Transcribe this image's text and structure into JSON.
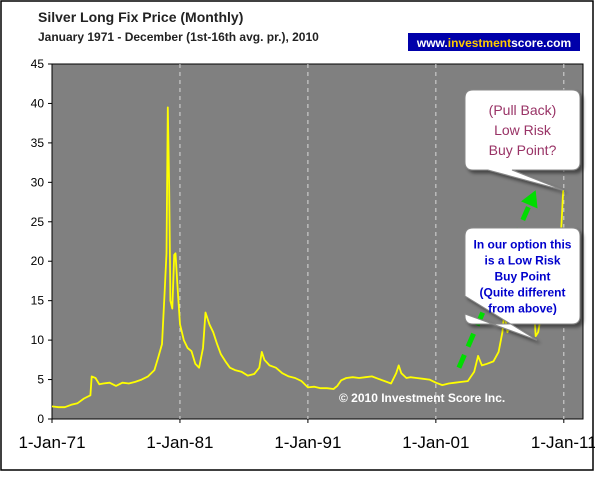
{
  "chart_data": {
    "type": "line",
    "title": "Silver Long Fix Price (Monthly)",
    "subtitle": "January 1971 - December (1st-16th avg. pr.), 2010",
    "website_prefix": "www.",
    "website_brand": "investment",
    "website_suffix": "score.com",
    "copyright": "© 2010 Investment Score Inc.",
    "ylim": [
      0,
      45
    ],
    "yticks": [
      "0",
      "5",
      "10",
      "15",
      "20",
      "25",
      "30",
      "35",
      "40",
      "45"
    ],
    "xticks": [
      {
        "label": "1-Jan-71",
        "year": 1971
      },
      {
        "label": "1-Jan-81",
        "year": 1981
      },
      {
        "label": "1-Jan-91",
        "year": 1991
      },
      {
        "label": "1-Jan-01",
        "year": 2001
      },
      {
        "label": "1-Jan-11",
        "year": 2011
      }
    ],
    "xlim": [
      1971,
      2012.5
    ],
    "grid": "vertical dashed at x ticks",
    "series": [
      {
        "color": "#ffff00",
        "points": [
          [
            1971.0,
            1.6
          ],
          [
            1971.5,
            1.5
          ],
          [
            1972.0,
            1.5
          ],
          [
            1972.5,
            1.8
          ],
          [
            1973.0,
            2.0
          ],
          [
            1973.5,
            2.6
          ],
          [
            1974.0,
            3.0
          ],
          [
            1974.1,
            5.4
          ],
          [
            1974.4,
            5.2
          ],
          [
            1974.7,
            4.4
          ],
          [
            1975.0,
            4.5
          ],
          [
            1975.5,
            4.6
          ],
          [
            1976.0,
            4.2
          ],
          [
            1976.5,
            4.6
          ],
          [
            1977.0,
            4.5
          ],
          [
            1977.5,
            4.7
          ],
          [
            1978.0,
            5.0
          ],
          [
            1978.5,
            5.4
          ],
          [
            1979.0,
            6.2
          ],
          [
            1979.3,
            7.8
          ],
          [
            1979.6,
            9.5
          ],
          [
            1979.8,
            16.0
          ],
          [
            1979.95,
            21.0
          ],
          [
            1980.05,
            39.5
          ],
          [
            1980.15,
            30.0
          ],
          [
            1980.25,
            15.0
          ],
          [
            1980.4,
            14.0
          ],
          [
            1980.55,
            20.8
          ],
          [
            1980.65,
            21.0
          ],
          [
            1980.8,
            17.0
          ],
          [
            1981.0,
            12.0
          ],
          [
            1981.3,
            10.0
          ],
          [
            1981.6,
            9.0
          ],
          [
            1981.9,
            8.6
          ],
          [
            1982.2,
            7.0
          ],
          [
            1982.5,
            6.5
          ],
          [
            1982.8,
            9.0
          ],
          [
            1983.0,
            13.5
          ],
          [
            1983.3,
            12.0
          ],
          [
            1983.6,
            11.0
          ],
          [
            1983.9,
            9.5
          ],
          [
            1984.2,
            8.2
          ],
          [
            1984.6,
            7.2
          ],
          [
            1984.9,
            6.5
          ],
          [
            1985.3,
            6.2
          ],
          [
            1985.8,
            6.0
          ],
          [
            1986.3,
            5.5
          ],
          [
            1986.8,
            5.7
          ],
          [
            1987.2,
            6.5
          ],
          [
            1987.4,
            8.5
          ],
          [
            1987.6,
            7.5
          ],
          [
            1988.0,
            6.8
          ],
          [
            1988.5,
            6.5
          ],
          [
            1989.0,
            5.8
          ],
          [
            1989.5,
            5.4
          ],
          [
            1990.0,
            5.2
          ],
          [
            1990.5,
            4.8
          ],
          [
            1991.0,
            4.0
          ],
          [
            1991.5,
            4.1
          ],
          [
            1992.0,
            3.9
          ],
          [
            1992.5,
            3.9
          ],
          [
            1993.0,
            3.8
          ],
          [
            1993.3,
            4.2
          ],
          [
            1993.6,
            4.9
          ],
          [
            1994.0,
            5.2
          ],
          [
            1994.5,
            5.3
          ],
          [
            1995.0,
            5.2
          ],
          [
            1995.5,
            5.3
          ],
          [
            1996.0,
            5.4
          ],
          [
            1996.5,
            5.1
          ],
          [
            1997.0,
            4.8
          ],
          [
            1997.5,
            4.5
          ],
          [
            1997.9,
            5.8
          ],
          [
            1998.1,
            6.8
          ],
          [
            1998.3,
            5.8
          ],
          [
            1998.7,
            5.2
          ],
          [
            1999.0,
            5.3
          ],
          [
            1999.5,
            5.2
          ],
          [
            2000.0,
            5.1
          ],
          [
            2000.5,
            5.0
          ],
          [
            2001.0,
            4.6
          ],
          [
            2001.5,
            4.3
          ],
          [
            2002.0,
            4.5
          ],
          [
            2002.5,
            4.6
          ],
          [
            2003.0,
            4.7
          ],
          [
            2003.5,
            4.8
          ],
          [
            2004.0,
            6.0
          ],
          [
            2004.3,
            8.0
          ],
          [
            2004.6,
            6.8
          ],
          [
            2005.0,
            7.0
          ],
          [
            2005.5,
            7.3
          ],
          [
            2005.9,
            8.5
          ],
          [
            2006.2,
            11.0
          ],
          [
            2006.35,
            13.5
          ],
          [
            2006.6,
            11.0
          ],
          [
            2007.0,
            13.0
          ],
          [
            2007.4,
            13.5
          ],
          [
            2007.8,
            13.0
          ],
          [
            2008.0,
            15.0
          ],
          [
            2008.2,
            19.5
          ],
          [
            2008.4,
            17.0
          ],
          [
            2008.6,
            16.0
          ],
          [
            2008.8,
            10.5
          ],
          [
            2009.0,
            11.0
          ],
          [
            2009.3,
            14.0
          ],
          [
            2009.6,
            16.0
          ],
          [
            2009.9,
            17.5
          ],
          [
            2010.2,
            17.0
          ],
          [
            2010.4,
            18.0
          ],
          [
            2010.6,
            19.0
          ],
          [
            2010.8,
            24.0
          ],
          [
            2010.95,
            29.0
          ]
        ]
      }
    ],
    "trend_arrow": {
      "from": [
        2002.8,
        6.5
      ],
      "to": [
        2008.8,
        29.0
      ],
      "color": "#00dd00"
    },
    "annotations": [
      {
        "lines": [
          "(Pull Back)",
          "Low Risk",
          "Buy Point?"
        ],
        "color": "#993366",
        "target": [
          2010.95,
          29.0
        ]
      },
      {
        "lines": [
          "In our option this",
          "is a Low Risk",
          "Buy Point",
          "(Quite different",
          "from above)"
        ],
        "color": "#0000cc",
        "target": [
          2008.9,
          10.0
        ]
      }
    ]
  }
}
